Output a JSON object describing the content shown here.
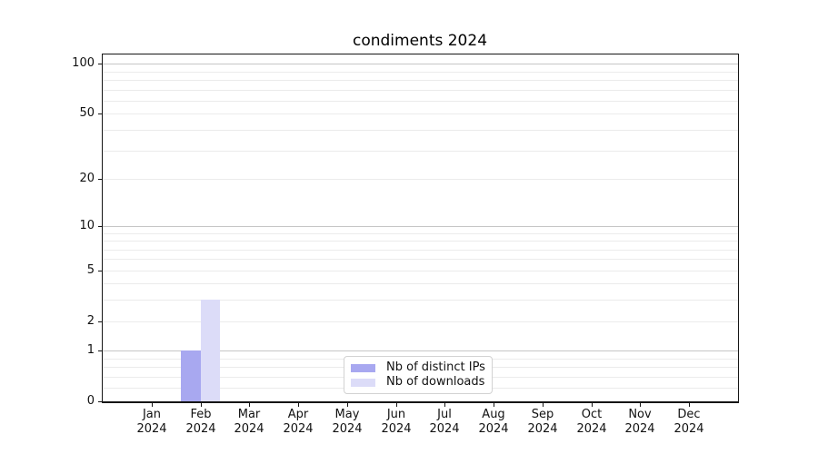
{
  "chart_data": {
    "type": "bar",
    "title": "condiments 2024",
    "categories": [
      "Jan 2024",
      "Feb 2024",
      "Mar 2024",
      "Apr 2024",
      "May 2024",
      "Jun 2024",
      "Jul 2024",
      "Aug 2024",
      "Sep 2024",
      "Oct 2024",
      "Nov 2024",
      "Dec 2024"
    ],
    "series": [
      {
        "name": "Nb of distinct IPs",
        "color": "#a8a8f0",
        "values": [
          0,
          1,
          0,
          0,
          0,
          0,
          0,
          0,
          0,
          0,
          0,
          0
        ]
      },
      {
        "name": "Nb of downloads",
        "color": "#dcdcf8",
        "values": [
          0,
          3,
          0,
          0,
          0,
          0,
          0,
          0,
          0,
          0,
          0,
          0
        ]
      }
    ],
    "xlabel": "",
    "ylabel": "",
    "y_scale": "log1p",
    "ylim": [
      0,
      114
    ],
    "y_ticks": [
      0,
      1,
      2,
      5,
      10,
      20,
      50,
      100
    ],
    "grid": {
      "major_values": [
        1,
        10,
        100
      ],
      "minor_values": [
        0.2,
        0.4,
        0.6,
        0.8,
        2,
        3,
        4,
        5,
        6,
        7,
        8,
        9,
        20,
        30,
        40,
        50,
        60,
        70,
        80,
        90
      ],
      "major_color": "#c6c6c6",
      "minor_color": "#ebebeb"
    },
    "legend_position": "lower center inside plot",
    "background": "#ffffff",
    "spine_color": "#151515",
    "bar_width_fraction": 0.4
  }
}
